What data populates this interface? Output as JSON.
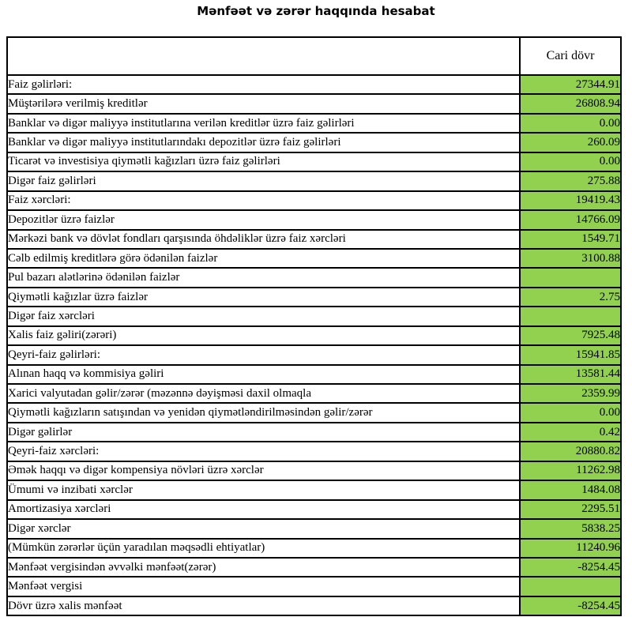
{
  "title": "Mənfəət və zərər haqqında hesabat",
  "colors": {
    "value_cell_bg": "#92d050",
    "border": "#000000"
  },
  "table": {
    "value_column_header": "Cari dövr",
    "rows": [
      {
        "label": "Faiz gəlirləri:",
        "value": "27344.91",
        "label_bold": true,
        "value_bold": false
      },
      {
        "label": "Müştərilərə verilmiş kreditlər",
        "value": "26808.94",
        "label_bold": false,
        "value_bold": false
      },
      {
        "label": "Banklar və digər maliyyə institutlarına verilən kreditlər üzrə faiz gəlirləri",
        "value": "0.00",
        "label_bold": false,
        "value_bold": false
      },
      {
        "label": "Banklar və digər maliyyə institutlarındakı depozitlər üzrə faiz gəlirləri",
        "value": "260.09",
        "label_bold": false,
        "value_bold": false
      },
      {
        "label": "Ticarət və investisiya qiymətli kağızları üzrə faiz gəlirləri",
        "value": "0.00",
        "label_bold": false,
        "value_bold": false
      },
      {
        "label": "Digər faiz gəlirləri",
        "value": "275.88",
        "label_bold": false,
        "value_bold": false
      },
      {
        "label": "Faiz xərcləri:",
        "value": "19419.43",
        "label_bold": true,
        "value_bold": false
      },
      {
        "label": "Depozitlər üzrə faizlər",
        "value": "14766.09",
        "label_bold": false,
        "value_bold": false
      },
      {
        "label": "Mərkəzi bank və dövlət fondları qarşısında öhdəliklər üzrə faiz xərcləri",
        "value": "1549.71",
        "label_bold": false,
        "value_bold": false
      },
      {
        "label": "Cəlb edilmiş kreditlərə görə ödənilən faizlər",
        "value": "3100.88",
        "label_bold": false,
        "value_bold": false
      },
      {
        "label": "Pul bazarı alətlərinə ödənilən faizlər",
        "value": "",
        "label_bold": false,
        "value_bold": false
      },
      {
        "label": "Qiymətli kağızlar üzrə faizlər",
        "value": "2.75",
        "label_bold": false,
        "value_bold": false
      },
      {
        "label": "Digər faiz xərcləri",
        "value": "",
        "label_bold": false,
        "value_bold": false
      },
      {
        "label": "Xalis faiz gəliri(zərəri)",
        "value": "7925.48",
        "label_bold": true,
        "value_bold": true
      },
      {
        "label": "Qeyri-faiz gəlirləri:",
        "value": "15941.85",
        "label_bold": true,
        "value_bold": false
      },
      {
        "label": "Alınan haqq və kommisiya gəliri",
        "value": "13581.44",
        "label_bold": false,
        "value_bold": false
      },
      {
        "label": "Xarici valyutadan gəlir/zərər (məzənnə dəyişməsi daxil olmaqla",
        "value": "2359.99",
        "label_bold": false,
        "value_bold": false
      },
      {
        "label": "Qiymətli kağızların satışından və yenidən qiymətləndirilməsindən gəlir/zərər",
        "value": "0.00",
        "label_bold": false,
        "value_bold": false
      },
      {
        "label": "Digər gəlirlər",
        "value": "0.42",
        "label_bold": false,
        "value_bold": false
      },
      {
        "label": "Qeyri-faiz xərcləri:",
        "value": "20880.82",
        "label_bold": true,
        "value_bold": false
      },
      {
        "label": "Əmək haqqı və digər kompensiya növləri üzrə xərclər",
        "value": "11262.98",
        "label_bold": false,
        "value_bold": false
      },
      {
        "label": "Ümumi və inzibati xərclər",
        "value": "1484.08",
        "label_bold": false,
        "value_bold": false
      },
      {
        "label": "Amortizasiya xərcləri",
        "value": "2295.51",
        "label_bold": false,
        "value_bold": false
      },
      {
        "label": "Digər xərclər",
        "value": "5838.25",
        "label_bold": false,
        "value_bold": false
      },
      {
        "label": "(Mümkün zərərlər üçün yaradılan məqsədli ehtiyatlar)",
        "value": "11240.96",
        "label_bold": true,
        "value_bold": false
      },
      {
        "label": "Mənfəət vergisindən əvvəlki mənfəət(zərər)",
        "value": "-8254.45",
        "label_bold": true,
        "value_bold": true
      },
      {
        "label": "Mənfəət vergisi",
        "value": "",
        "label_bold": true,
        "value_bold": false
      },
      {
        "label": "Dövr üzrə xalis mənfəət",
        "value": "-8254.45",
        "label_bold": true,
        "value_bold": true
      }
    ]
  }
}
